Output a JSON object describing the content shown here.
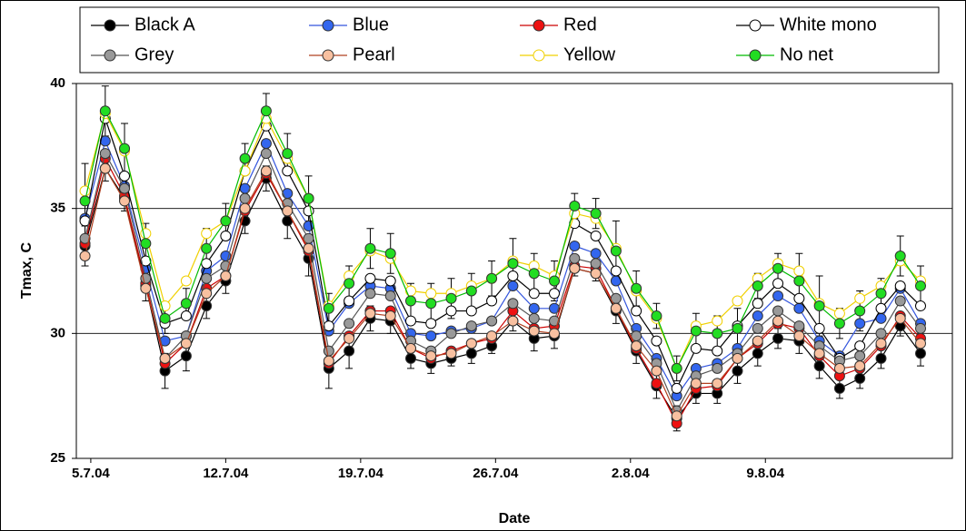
{
  "chart_data": {
    "type": "line",
    "y_label": "Tmax, C",
    "x_label": "Date",
    "ylim": [
      25,
      40
    ],
    "yticks": [
      25,
      30,
      35,
      40
    ],
    "grid": true,
    "xlim": [
      -0.75,
      44.7
    ],
    "xticks": [
      {
        "value": 0,
        "label": "5.7.04"
      },
      {
        "value": 7,
        "label": "12.7.04"
      },
      {
        "value": 14,
        "label": "19.7.04"
      },
      {
        "value": 21,
        "label": "26.7.04"
      },
      {
        "value": 28,
        "label": "2.8.04"
      },
      {
        "value": 35,
        "label": "9.8.04"
      }
    ],
    "legend_position": "top",
    "x": [
      -0.3,
      0.75,
      1.75,
      2.85,
      3.85,
      4.95,
      6.0,
      7.0,
      8.0,
      9.1,
      10.2,
      11.3,
      12.35,
      13.4,
      14.5,
      15.55,
      16.6,
      17.65,
      18.7,
      19.75,
      20.8,
      21.9,
      23.0,
      24.05,
      25.1,
      26.2,
      27.25,
      28.3,
      29.35,
      30.4,
      31.4,
      32.5,
      33.55,
      34.6,
      35.65,
      36.75,
      37.8,
      38.85,
      39.9,
      41.0,
      42.0,
      43.05
    ],
    "series": [
      {
        "name": "Black A",
        "color": "#000000",
        "marker_color": "#000000",
        "values": [
          33.5,
          36.6,
          35.4,
          31.9,
          28.5,
          29.1,
          31.1,
          32.1,
          34.5,
          36.2,
          34.5,
          33.0,
          28.6,
          29.3,
          30.6,
          30.5,
          29.0,
          28.8,
          29.0,
          29.2,
          29.5,
          30.5,
          29.8,
          29.9,
          32.6,
          32.4,
          30.9,
          29.3,
          27.9,
          26.6,
          27.6,
          27.6,
          28.5,
          29.2,
          29.8,
          29.7,
          28.7,
          27.8,
          28.2,
          29.0,
          30.3,
          29.2
        ],
        "errors": [
          0.8,
          0.5,
          0.5,
          0.6,
          0.7,
          0.6,
          0.5,
          0.5,
          0.5,
          0.5,
          0.7,
          0.7,
          0.8,
          0.7,
          0.5,
          0.5,
          0.4,
          0.4,
          0.3,
          0.4,
          0.3,
          0.4,
          0.5,
          0.5,
          0.3,
          0.3,
          0.5,
          0.5,
          0.5,
          0.5,
          0.4,
          0.4,
          0.5,
          0.5,
          0.4,
          0.5,
          0.5,
          0.4,
          0.4,
          0.4,
          0.4,
          0.5
        ]
      },
      {
        "name": "Blue",
        "color": "#3355dd",
        "marker_color": "#3366ee",
        "values": [
          34.6,
          37.7,
          35.9,
          32.6,
          29.7,
          29.9,
          32.5,
          33.1,
          35.8,
          37.6,
          35.6,
          34.3,
          30.1,
          31.2,
          31.9,
          31.8,
          30.0,
          29.9,
          30.1,
          30.2,
          30.5,
          31.9,
          31.0,
          31.0,
          33.5,
          33.2,
          32.1,
          30.2,
          29.0,
          27.5,
          28.6,
          28.8,
          29.4,
          30.7,
          31.5,
          31.0,
          29.7,
          29.1,
          30.4,
          30.6,
          31.8,
          30.4
        ]
      },
      {
        "name": "Red",
        "color": "#cc0000",
        "marker_color": "#ee1111",
        "values": [
          33.6,
          37.0,
          35.5,
          32.0,
          28.8,
          29.6,
          31.8,
          32.3,
          34.9,
          36.4,
          34.9,
          33.3,
          28.8,
          29.9,
          30.9,
          30.9,
          29.4,
          29.0,
          29.3,
          29.6,
          29.8,
          30.9,
          30.2,
          30.3,
          32.7,
          32.6,
          31.0,
          29.4,
          28.0,
          26.4,
          27.8,
          27.9,
          29.0,
          29.6,
          30.4,
          30.2,
          29.1,
          28.3,
          28.6,
          29.5,
          30.7,
          29.8
        ]
      },
      {
        "name": "White mono",
        "color": "#000000",
        "marker_color": "#ffffff",
        "values": [
          34.5,
          38.6,
          36.3,
          32.9,
          30.4,
          30.7,
          32.8,
          33.9,
          36.5,
          38.3,
          36.5,
          34.9,
          30.3,
          31.3,
          32.2,
          32.1,
          30.5,
          30.4,
          30.9,
          30.9,
          31.3,
          32.3,
          31.6,
          31.6,
          34.4,
          33.9,
          32.5,
          30.9,
          29.7,
          27.8,
          29.4,
          29.3,
          30.3,
          31.2,
          32.0,
          31.4,
          30.2,
          29.0,
          29.5,
          31.0,
          31.9,
          31.1
        ]
      },
      {
        "name": "Grey",
        "color": "#555555",
        "marker_color": "#999999",
        "values": [
          33.8,
          37.2,
          35.8,
          32.2,
          29.0,
          29.9,
          32.2,
          32.7,
          35.4,
          37.2,
          35.2,
          33.8,
          29.3,
          30.4,
          31.6,
          31.5,
          29.7,
          29.3,
          30.0,
          30.3,
          30.5,
          31.2,
          30.6,
          30.5,
          33.0,
          32.8,
          31.4,
          29.9,
          28.8,
          26.9,
          28.3,
          28.6,
          29.2,
          30.2,
          30.9,
          30.3,
          29.5,
          28.9,
          29.1,
          30.0,
          31.3,
          30.2
        ]
      },
      {
        "name": "Pearl",
        "color": "#b04020",
        "marker_color": "#f8c0a0",
        "values": [
          33.1,
          36.6,
          35.3,
          31.8,
          29.0,
          29.6,
          31.6,
          32.3,
          35.0,
          36.5,
          34.9,
          33.4,
          28.9,
          29.8,
          30.8,
          30.7,
          29.4,
          29.1,
          29.2,
          29.6,
          29.9,
          30.5,
          30.1,
          30.0,
          32.6,
          32.4,
          31.0,
          29.5,
          28.5,
          26.7,
          28.0,
          28.0,
          29.0,
          29.7,
          30.5,
          29.9,
          29.2,
          28.6,
          28.7,
          29.6,
          30.6,
          29.6
        ]
      },
      {
        "name": "Yellow",
        "color": "#f0d000",
        "marker_color": "#ffffff",
        "values": [
          35.7,
          38.8,
          37.3,
          34.0,
          31.1,
          32.1,
          34.0,
          34.5,
          36.5,
          38.6,
          37.0,
          35.4,
          31.1,
          32.3,
          33.3,
          33.0,
          31.7,
          31.6,
          31.6,
          31.9,
          32.2,
          32.9,
          32.7,
          32.3,
          34.8,
          34.6,
          33.4,
          31.7,
          30.6,
          28.6,
          30.3,
          30.5,
          31.3,
          32.2,
          32.8,
          32.5,
          31.2,
          30.8,
          31.4,
          31.9,
          32.9,
          32.1
        ]
      },
      {
        "name": "No net",
        "color": "#00bb00",
        "marker_color": "#22dd22",
        "values": [
          35.3,
          38.9,
          37.4,
          33.6,
          30.6,
          31.2,
          33.4,
          34.5,
          37.0,
          38.9,
          37.2,
          35.4,
          31.0,
          32.0,
          33.4,
          33.2,
          31.3,
          31.2,
          31.4,
          31.7,
          32.2,
          32.8,
          32.4,
          32.1,
          35.1,
          34.8,
          33.3,
          31.8,
          30.7,
          28.6,
          30.1,
          30.0,
          30.2,
          31.9,
          32.6,
          32.1,
          31.1,
          30.4,
          30.9,
          31.6,
          33.1,
          31.9
        ],
        "errors": [
          1.5,
          1.0,
          1.0,
          0.8,
          0.6,
          0.6,
          0.8,
          0.7,
          0.6,
          0.7,
          0.8,
          0.9,
          0.6,
          0.7,
          0.8,
          0.8,
          0.7,
          0.8,
          0.8,
          0.7,
          0.7,
          1.0,
          0.8,
          0.8,
          0.5,
          0.6,
          1.2,
          0.7,
          0.5,
          0.5,
          0.7,
          0.7,
          0.8,
          0.5,
          0.6,
          1.1,
          1.2,
          0.6,
          0.8,
          0.6,
          0.8,
          0.8
        ]
      }
    ]
  }
}
